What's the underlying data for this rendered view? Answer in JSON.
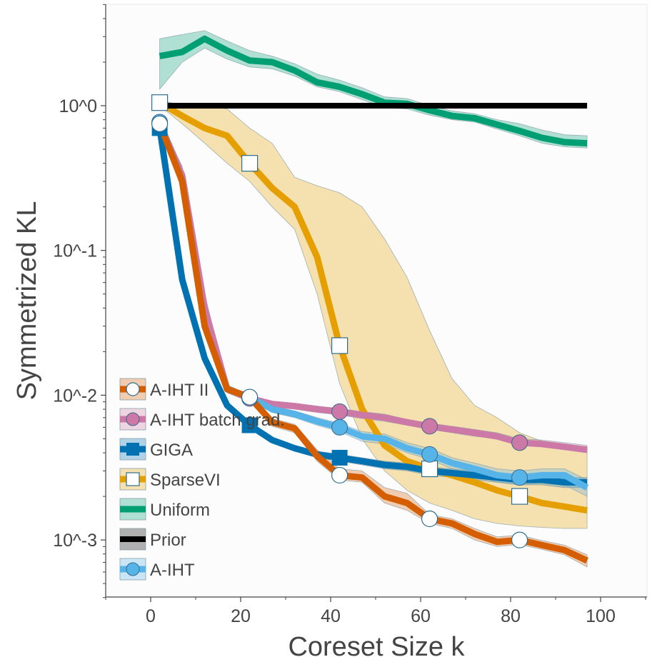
{
  "chart_data": {
    "type": "line",
    "xlabel": "Coreset Size k",
    "ylabel": "Symmetrized KL",
    "xlim": [
      -10,
      110
    ],
    "ylim_log10": [
      -3.4,
      0.7
    ],
    "yscale": "log",
    "x_ticks": [
      0,
      20,
      40,
      60,
      80,
      100
    ],
    "x_tick_labels": [
      "0",
      "20",
      "40",
      "60",
      "80",
      "100"
    ],
    "y_ticks": [
      1,
      0.1,
      0.01,
      0.001
    ],
    "y_tick_labels": [
      "10^0",
      "10^-1",
      "10^-2",
      "10^-3"
    ],
    "grid": false,
    "legend_position": "lower-left",
    "series": [
      {
        "name": "Uniform",
        "color": "#009e73",
        "marker": "none",
        "x": [
          2,
          7,
          12,
          17,
          22,
          27,
          32,
          37,
          42,
          47,
          52,
          57,
          62,
          67,
          72,
          77,
          82,
          87,
          92,
          97
        ],
        "y": [
          2.2,
          2.35,
          2.9,
          2.4,
          2.05,
          2.0,
          1.75,
          1.45,
          1.35,
          1.2,
          1.05,
          1.03,
          0.93,
          0.85,
          0.82,
          0.74,
          0.67,
          0.6,
          0.56,
          0.55
        ],
        "lower": [
          1.3,
          2.0,
          2.5,
          2.1,
          1.85,
          1.8,
          1.6,
          1.35,
          1.25,
          1.1,
          0.97,
          0.95,
          0.86,
          0.8,
          0.77,
          0.69,
          0.62,
          0.55,
          0.52,
          0.51
        ],
        "upper": [
          2.9,
          3.1,
          3.3,
          2.8,
          2.4,
          2.2,
          1.95,
          1.65,
          1.5,
          1.33,
          1.15,
          1.12,
          1.0,
          0.92,
          0.88,
          0.8,
          0.75,
          0.68,
          0.63,
          0.62
        ],
        "markers_at": []
      },
      {
        "name": "Prior",
        "color": "#000000",
        "marker": "none",
        "x": [
          2,
          97
        ],
        "y": [
          1.0,
          1.0
        ],
        "lower": [],
        "upper": [],
        "markers_at": []
      },
      {
        "name": "SparseVI",
        "color": "#e69f00",
        "marker": "open-square",
        "x": [
          2,
          7,
          12,
          17,
          22,
          27,
          32,
          37,
          42,
          47,
          52,
          57,
          62,
          67,
          72,
          77,
          82,
          87,
          92,
          97
        ],
        "y": [
          1.05,
          0.85,
          0.7,
          0.62,
          0.4,
          0.27,
          0.2,
          0.09,
          0.022,
          0.008,
          0.0045,
          0.0035,
          0.0031,
          0.0028,
          0.0025,
          0.0022,
          0.002,
          0.0018,
          0.0017,
          0.0016
        ],
        "lower": [
          1.0,
          0.75,
          0.55,
          0.4,
          0.3,
          0.2,
          0.14,
          0.05,
          0.012,
          0.005,
          0.003,
          0.0022,
          0.0018,
          0.0016,
          0.0014,
          0.0013,
          0.00125,
          0.00122,
          0.0012,
          0.0012
        ],
        "upper": [
          1.1,
          1.0,
          1.0,
          0.95,
          0.7,
          0.55,
          0.32,
          0.28,
          0.25,
          0.2,
          0.12,
          0.065,
          0.028,
          0.013,
          0.0085,
          0.007,
          0.0055,
          0.0048,
          0.0044,
          0.0042
        ],
        "markers_at": [
          2,
          22,
          42,
          62,
          82
        ]
      },
      {
        "name": "GIGA",
        "color": "#0072b2",
        "marker": "filled-square",
        "x": [
          2,
          7,
          12,
          17,
          22,
          27,
          32,
          37,
          42,
          47,
          52,
          57,
          62,
          67,
          72,
          77,
          82,
          87,
          92,
          97
        ],
        "y": [
          0.7,
          0.063,
          0.018,
          0.0085,
          0.0062,
          0.0049,
          0.0043,
          0.0039,
          0.0037,
          0.0035,
          0.0033,
          0.0032,
          0.003,
          0.0029,
          0.0028,
          0.0027,
          0.0026,
          0.0026,
          0.0025,
          0.0025
        ],
        "lower": [
          0.65,
          0.058,
          0.017,
          0.008,
          0.0059,
          0.0047,
          0.0041,
          0.0037,
          0.0035,
          0.0033,
          0.0031,
          0.003,
          0.0028,
          0.0027,
          0.0026,
          0.0025,
          0.0024,
          0.0024,
          0.0023,
          0.0023
        ],
        "upper": [
          0.75,
          0.068,
          0.019,
          0.009,
          0.0065,
          0.0051,
          0.0045,
          0.0041,
          0.0039,
          0.0037,
          0.0035,
          0.0034,
          0.0032,
          0.0031,
          0.003,
          0.0029,
          0.0028,
          0.0028,
          0.0027,
          0.0027
        ],
        "markers_at": [
          2,
          22,
          42
        ]
      },
      {
        "name": "A-IHT batch grad.",
        "color": "#cc79a7",
        "marker": "filled-circle",
        "x": [
          2,
          7,
          12,
          17,
          22,
          27,
          32,
          37,
          42,
          47,
          52,
          57,
          62,
          67,
          72,
          77,
          82,
          87,
          92,
          97
        ],
        "y": [
          0.76,
          0.33,
          0.04,
          0.011,
          0.0095,
          0.0087,
          0.0084,
          0.008,
          0.0077,
          0.0073,
          0.007,
          0.0065,
          0.0061,
          0.0058,
          0.0055,
          0.0052,
          0.0047,
          0.0046,
          0.0044,
          0.0042
        ],
        "lower": [
          0.72,
          0.29,
          0.033,
          0.0104,
          0.009,
          0.0083,
          0.008,
          0.0076,
          0.0073,
          0.0069,
          0.0066,
          0.0062,
          0.0058,
          0.0055,
          0.0052,
          0.005,
          0.0045,
          0.0044,
          0.0042,
          0.004
        ],
        "upper": [
          0.8,
          0.38,
          0.05,
          0.0118,
          0.01,
          0.0091,
          0.0088,
          0.0084,
          0.0081,
          0.0077,
          0.0074,
          0.0068,
          0.0064,
          0.0061,
          0.0058,
          0.0055,
          0.005,
          0.0049,
          0.0047,
          0.0045
        ],
        "markers_at": [
          2,
          22,
          42,
          62,
          82
        ]
      },
      {
        "name": "A-IHT",
        "color": "#56b4e9",
        "marker": "filled-circle",
        "x": [
          2,
          7,
          12,
          17,
          22,
          27,
          32,
          37,
          42,
          47,
          52,
          57,
          62,
          67,
          72,
          77,
          82,
          87,
          92,
          97
        ],
        "y": [
          0.77,
          0.3,
          0.03,
          0.011,
          0.0097,
          0.008,
          0.0074,
          0.0066,
          0.006,
          0.0052,
          0.005,
          0.0043,
          0.0039,
          0.0034,
          0.0031,
          0.0028,
          0.0027,
          0.0028,
          0.0028,
          0.0023
        ],
        "lower": [
          0.73,
          0.27,
          0.026,
          0.0104,
          0.0092,
          0.0076,
          0.007,
          0.0062,
          0.0056,
          0.0048,
          0.0046,
          0.004,
          0.0036,
          0.0031,
          0.0028,
          0.0025,
          0.0024,
          0.0025,
          0.0024,
          0.002
        ],
        "upper": [
          0.81,
          0.33,
          0.035,
          0.0116,
          0.0102,
          0.0084,
          0.0078,
          0.007,
          0.0064,
          0.0056,
          0.0054,
          0.0047,
          0.0043,
          0.0037,
          0.0034,
          0.0031,
          0.003,
          0.0031,
          0.0031,
          0.0026
        ],
        "markers_at": [
          2,
          22,
          42,
          62,
          82
        ]
      },
      {
        "name": "A-IHT II",
        "color": "#d55e00",
        "marker": "open-circle",
        "x": [
          2,
          7,
          12,
          17,
          22,
          27,
          32,
          37,
          42,
          47,
          52,
          57,
          62,
          67,
          72,
          77,
          82,
          87,
          92,
          97
        ],
        "y": [
          0.75,
          0.3,
          0.03,
          0.011,
          0.0097,
          0.0065,
          0.0059,
          0.0038,
          0.0028,
          0.0027,
          0.002,
          0.0018,
          0.0014,
          0.0013,
          0.0011,
          0.00097,
          0.001,
          0.00092,
          0.00085,
          0.00072
        ],
        "lower": [
          0.72,
          0.28,
          0.027,
          0.0105,
          0.0093,
          0.0061,
          0.0055,
          0.0035,
          0.0026,
          0.0025,
          0.0018,
          0.0016,
          0.0013,
          0.0012,
          0.001,
          0.0009,
          0.00093,
          0.00086,
          0.00079,
          0.00065
        ],
        "upper": [
          0.78,
          0.32,
          0.033,
          0.0115,
          0.0101,
          0.0069,
          0.0063,
          0.0042,
          0.0031,
          0.003,
          0.0023,
          0.0021,
          0.0015,
          0.0014,
          0.0012,
          0.00105,
          0.00108,
          0.00099,
          0.00092,
          0.00079
        ],
        "markers_at": [
          2,
          22,
          42,
          62,
          82
        ]
      }
    ],
    "legend": [
      "A-IHT II",
      "A-IHT batch grad.",
      "GIGA",
      "SparseVI",
      "Uniform",
      "Prior",
      "A-IHT"
    ]
  }
}
